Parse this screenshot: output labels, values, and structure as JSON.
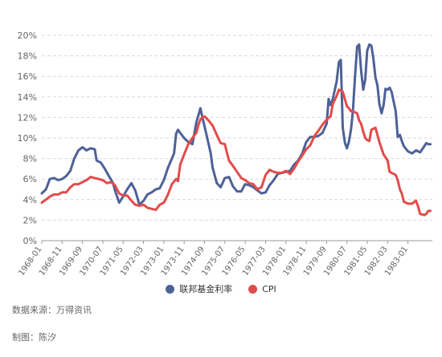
{
  "chart_data": {
    "type": "line",
    "yticks": [
      "0%",
      "2%",
      "4%",
      "6%",
      "8%",
      "10%",
      "12%",
      "14%",
      "16%",
      "18%",
      "20%"
    ],
    "ylim": [
      0,
      20
    ],
    "xlim": [
      1968.0,
      1984.0
    ],
    "xticks": [
      "1968-01",
      "1968-11",
      "1969-09",
      "1970-07",
      "1971-05",
      "1972-03",
      "1973-01",
      "1973-11",
      "1974-09",
      "1975-07",
      "1976-05",
      "1977-03",
      "1978-01",
      "1978-11",
      "1979-09",
      "1980-07",
      "1981-05",
      "1982-03",
      "1983-01"
    ],
    "grid": true,
    "series": [
      {
        "name": "联邦基金利率",
        "color": "#4e6197",
        "points": [
          [
            1968.0,
            4.6
          ],
          [
            1968.17,
            5.0
          ],
          [
            1968.33,
            6.0
          ],
          [
            1968.5,
            6.1
          ],
          [
            1968.67,
            5.9
          ],
          [
            1968.83,
            6.0
          ],
          [
            1969.0,
            6.3
          ],
          [
            1969.17,
            6.8
          ],
          [
            1969.33,
            8.0
          ],
          [
            1969.5,
            8.8
          ],
          [
            1969.67,
            9.1
          ],
          [
            1969.83,
            8.8
          ],
          [
            1970.0,
            9.0
          ],
          [
            1970.17,
            8.9
          ],
          [
            1970.25,
            7.8
          ],
          [
            1970.42,
            7.6
          ],
          [
            1970.58,
            7.0
          ],
          [
            1970.75,
            6.3
          ],
          [
            1970.92,
            5.6
          ],
          [
            1971.0,
            4.9
          ],
          [
            1971.17,
            3.7
          ],
          [
            1971.33,
            4.3
          ],
          [
            1971.5,
            5.0
          ],
          [
            1971.67,
            5.6
          ],
          [
            1971.83,
            4.9
          ],
          [
            1972.0,
            3.5
          ],
          [
            1972.17,
            3.9
          ],
          [
            1972.33,
            4.5
          ],
          [
            1972.5,
            4.7
          ],
          [
            1972.67,
            5.0
          ],
          [
            1972.83,
            5.1
          ],
          [
            1973.0,
            5.9
          ],
          [
            1973.17,
            7.1
          ],
          [
            1973.33,
            8.0
          ],
          [
            1973.42,
            8.5
          ],
          [
            1973.5,
            10.4
          ],
          [
            1973.58,
            10.8
          ],
          [
            1973.67,
            10.5
          ],
          [
            1973.83,
            10.0
          ],
          [
            1974.0,
            9.6
          ],
          [
            1974.17,
            9.4
          ],
          [
            1974.33,
            11.5
          ],
          [
            1974.5,
            12.9
          ],
          [
            1974.58,
            12.0
          ],
          [
            1974.75,
            10.3
          ],
          [
            1974.92,
            8.5
          ],
          [
            1975.0,
            7.1
          ],
          [
            1975.17,
            5.6
          ],
          [
            1975.33,
            5.2
          ],
          [
            1975.5,
            6.1
          ],
          [
            1975.67,
            6.2
          ],
          [
            1975.83,
            5.3
          ],
          [
            1976.0,
            4.8
          ],
          [
            1976.17,
            4.8
          ],
          [
            1976.33,
            5.5
          ],
          [
            1976.5,
            5.4
          ],
          [
            1976.67,
            5.2
          ],
          [
            1976.83,
            4.9
          ],
          [
            1977.0,
            4.6
          ],
          [
            1977.17,
            4.7
          ],
          [
            1977.33,
            5.4
          ],
          [
            1977.5,
            5.9
          ],
          [
            1977.67,
            6.5
          ],
          [
            1977.83,
            6.6
          ],
          [
            1978.0,
            6.7
          ],
          [
            1978.17,
            6.8
          ],
          [
            1978.33,
            7.4
          ],
          [
            1978.5,
            7.8
          ],
          [
            1978.67,
            8.5
          ],
          [
            1978.83,
            9.6
          ],
          [
            1979.0,
            10.1
          ],
          [
            1979.17,
            10.1
          ],
          [
            1979.33,
            10.2
          ],
          [
            1979.5,
            10.5
          ],
          [
            1979.67,
            11.4
          ],
          [
            1979.75,
            13.8
          ],
          [
            1979.83,
            13.2
          ],
          [
            1979.92,
            13.8
          ],
          [
            1980.08,
            15.5
          ],
          [
            1980.17,
            17.4
          ],
          [
            1980.25,
            17.6
          ],
          [
            1980.33,
            11.0
          ],
          [
            1980.42,
            9.5
          ],
          [
            1980.5,
            9.0
          ],
          [
            1980.58,
            9.6
          ],
          [
            1980.67,
            10.9
          ],
          [
            1980.75,
            12.8
          ],
          [
            1980.83,
            15.9
          ],
          [
            1980.92,
            18.9
          ],
          [
            1981.0,
            19.1
          ],
          [
            1981.08,
            16.6
          ],
          [
            1981.17,
            14.7
          ],
          [
            1981.25,
            15.7
          ],
          [
            1981.33,
            18.5
          ],
          [
            1981.42,
            19.1
          ],
          [
            1981.5,
            19.0
          ],
          [
            1981.58,
            17.8
          ],
          [
            1981.67,
            15.9
          ],
          [
            1981.75,
            15.1
          ],
          [
            1981.83,
            13.3
          ],
          [
            1981.92,
            12.4
          ],
          [
            1982.0,
            13.2
          ],
          [
            1982.08,
            14.8
          ],
          [
            1982.17,
            14.7
          ],
          [
            1982.25,
            14.9
          ],
          [
            1982.33,
            14.5
          ],
          [
            1982.5,
            12.6
          ],
          [
            1982.58,
            10.1
          ],
          [
            1982.67,
            10.3
          ],
          [
            1982.75,
            9.7
          ],
          [
            1982.83,
            9.2
          ],
          [
            1983.0,
            8.7
          ],
          [
            1983.17,
            8.5
          ],
          [
            1983.33,
            8.8
          ],
          [
            1983.5,
            8.6
          ],
          [
            1983.67,
            9.2
          ],
          [
            1983.75,
            9.5
          ],
          [
            1983.83,
            9.4
          ],
          [
            1983.92,
            9.4
          ]
        ]
      },
      {
        "name": "CPI",
        "color": "#e24b4b",
        "points": [
          [
            1968.0,
            3.7
          ],
          [
            1968.17,
            4.0
          ],
          [
            1968.33,
            4.3
          ],
          [
            1968.5,
            4.5
          ],
          [
            1968.67,
            4.5
          ],
          [
            1968.83,
            4.7
          ],
          [
            1969.0,
            4.7
          ],
          [
            1969.17,
            5.2
          ],
          [
            1969.33,
            5.5
          ],
          [
            1969.5,
            5.5
          ],
          [
            1969.67,
            5.7
          ],
          [
            1969.83,
            5.9
          ],
          [
            1970.0,
            6.2
          ],
          [
            1970.17,
            6.1
          ],
          [
            1970.33,
            6.0
          ],
          [
            1970.5,
            5.9
          ],
          [
            1970.67,
            5.6
          ],
          [
            1970.83,
            5.7
          ],
          [
            1971.0,
            5.4
          ],
          [
            1971.17,
            4.6
          ],
          [
            1971.33,
            4.4
          ],
          [
            1971.5,
            4.4
          ],
          [
            1971.67,
            3.9
          ],
          [
            1971.83,
            3.5
          ],
          [
            1972.0,
            3.4
          ],
          [
            1972.17,
            3.5
          ],
          [
            1972.33,
            3.2
          ],
          [
            1972.5,
            3.1
          ],
          [
            1972.67,
            3.0
          ],
          [
            1972.83,
            3.5
          ],
          [
            1973.0,
            3.7
          ],
          [
            1973.17,
            4.5
          ],
          [
            1973.33,
            5.5
          ],
          [
            1973.5,
            6.0
          ],
          [
            1973.58,
            5.8
          ],
          [
            1973.67,
            7.4
          ],
          [
            1973.83,
            8.4
          ],
          [
            1974.0,
            9.4
          ],
          [
            1974.17,
            10.0
          ],
          [
            1974.33,
            10.5
          ],
          [
            1974.42,
            11.3
          ],
          [
            1974.5,
            11.8
          ],
          [
            1974.58,
            12.0
          ],
          [
            1974.67,
            12.1
          ],
          [
            1974.83,
            11.7
          ],
          [
            1975.0,
            11.2
          ],
          [
            1975.17,
            10.3
          ],
          [
            1975.33,
            9.5
          ],
          [
            1975.5,
            9.4
          ],
          [
            1975.58,
            8.6
          ],
          [
            1975.67,
            7.8
          ],
          [
            1975.83,
            7.3
          ],
          [
            1976.0,
            6.7
          ],
          [
            1976.17,
            6.1
          ],
          [
            1976.33,
            5.9
          ],
          [
            1976.5,
            5.6
          ],
          [
            1976.67,
            5.5
          ],
          [
            1976.83,
            5.0
          ],
          [
            1977.0,
            5.2
          ],
          [
            1977.17,
            6.4
          ],
          [
            1977.33,
            6.9
          ],
          [
            1977.5,
            6.7
          ],
          [
            1977.67,
            6.6
          ],
          [
            1977.83,
            6.6
          ],
          [
            1978.0,
            6.8
          ],
          [
            1978.17,
            6.5
          ],
          [
            1978.33,
            7.0
          ],
          [
            1978.5,
            7.7
          ],
          [
            1978.67,
            8.3
          ],
          [
            1978.83,
            8.9
          ],
          [
            1979.0,
            9.3
          ],
          [
            1979.17,
            10.2
          ],
          [
            1979.33,
            10.7
          ],
          [
            1979.5,
            11.3
          ],
          [
            1979.67,
            11.8
          ],
          [
            1979.83,
            12.1
          ],
          [
            1979.92,
            13.3
          ],
          [
            1980.08,
            14.1
          ],
          [
            1980.17,
            14.7
          ],
          [
            1980.33,
            14.5
          ],
          [
            1980.5,
            13.1
          ],
          [
            1980.58,
            12.9
          ],
          [
            1980.67,
            12.6
          ],
          [
            1980.75,
            12.6
          ],
          [
            1980.92,
            12.4
          ],
          [
            1981.0,
            11.7
          ],
          [
            1981.08,
            11.4
          ],
          [
            1981.17,
            10.6
          ],
          [
            1981.25,
            10.0
          ],
          [
            1981.33,
            9.8
          ],
          [
            1981.42,
            9.7
          ],
          [
            1981.5,
            10.8
          ],
          [
            1981.58,
            10.9
          ],
          [
            1981.67,
            11.0
          ],
          [
            1981.83,
            9.6
          ],
          [
            1982.0,
            8.4
          ],
          [
            1982.17,
            7.8
          ],
          [
            1982.25,
            6.7
          ],
          [
            1982.33,
            6.6
          ],
          [
            1982.42,
            6.5
          ],
          [
            1982.5,
            6.4
          ],
          [
            1982.58,
            5.9
          ],
          [
            1982.67,
            5.0
          ],
          [
            1982.75,
            4.6
          ],
          [
            1982.83,
            3.8
          ],
          [
            1983.0,
            3.6
          ],
          [
            1983.17,
            3.6
          ],
          [
            1983.33,
            3.9
          ],
          [
            1983.42,
            3.3
          ],
          [
            1983.5,
            2.6
          ],
          [
            1983.67,
            2.5
          ],
          [
            1983.75,
            2.6
          ],
          [
            1983.83,
            2.9
          ],
          [
            1983.92,
            2.9
          ]
        ]
      }
    ]
  },
  "legend": {
    "item1": "联邦基金利率",
    "item2": "CPI"
  },
  "footer": {
    "source": "数据来源：万得资讯",
    "maker": "制图：陈汐"
  }
}
